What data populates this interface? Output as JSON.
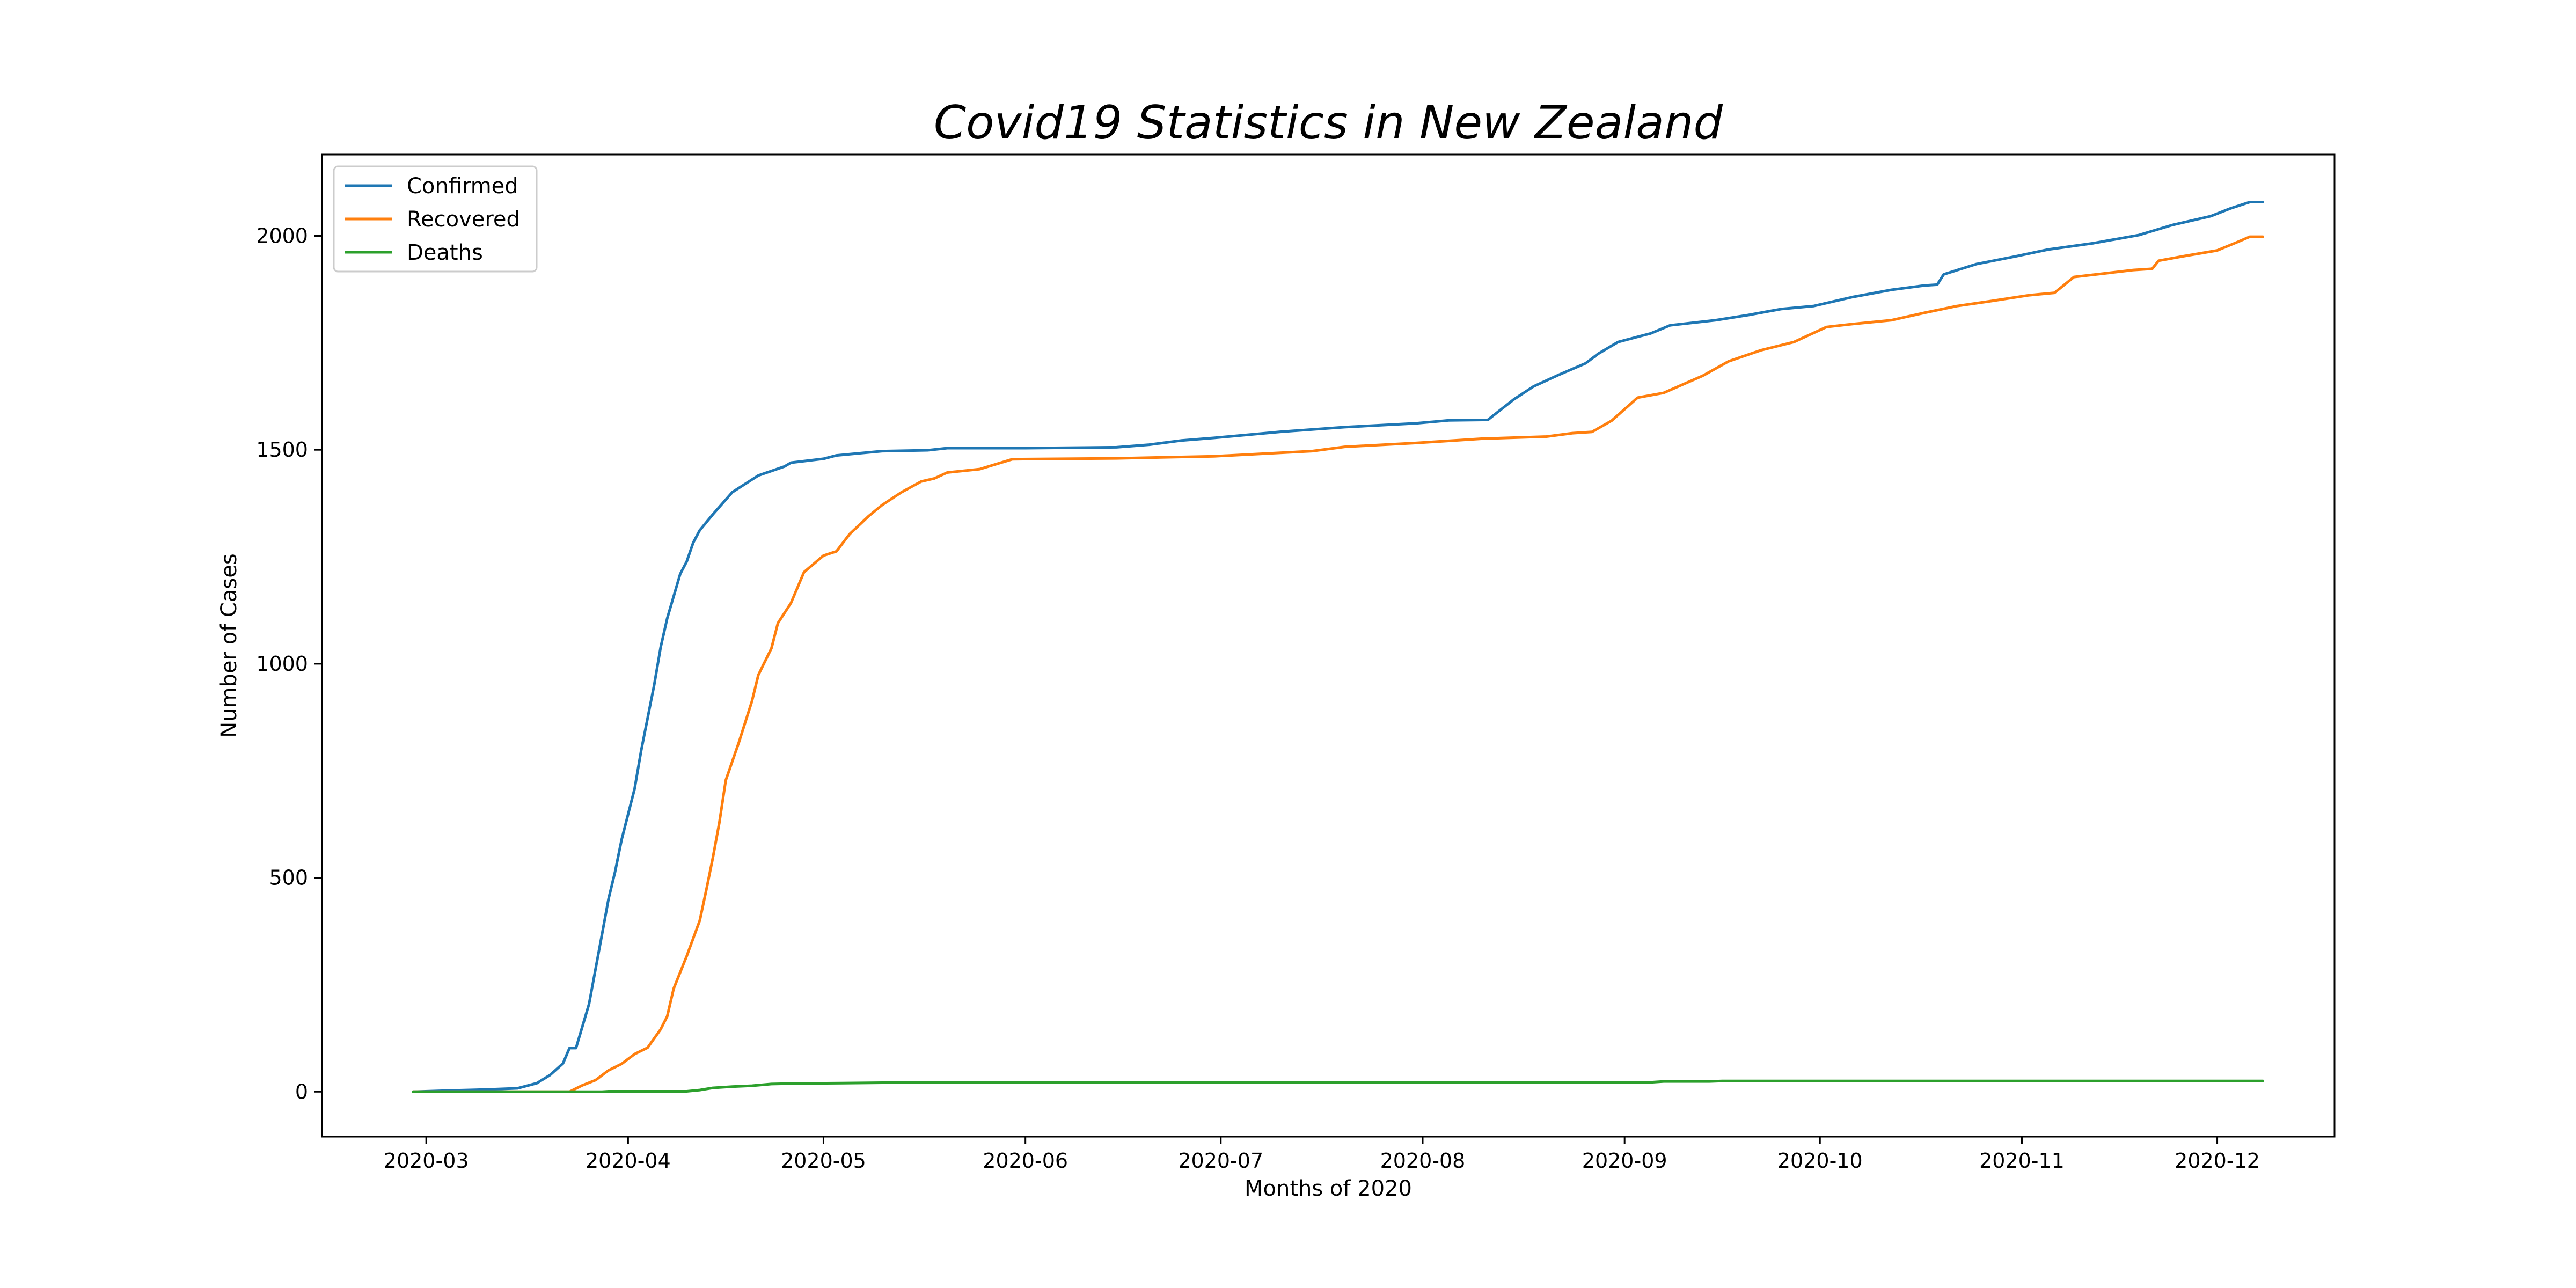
{
  "chart_data": {
    "type": "line",
    "title": "Covid19 Statistics in New Zealand",
    "xlabel": "Months of 2020",
    "ylabel": "Number of Cases",
    "xlim": [
      "2020-02-14",
      "2020-12-19"
    ],
    "ylim": [
      -105,
      2190
    ],
    "x_ticks": [
      "2020-03",
      "2020-04",
      "2020-05",
      "2020-06",
      "2020-07",
      "2020-08",
      "2020-09",
      "2020-10",
      "2020-11",
      "2020-12"
    ],
    "y_ticks": [
      0,
      500,
      1000,
      1500,
      2000
    ],
    "grid": false,
    "legend_position": "top-left",
    "series": [
      {
        "name": "Confirmed",
        "color": "#1f77b4",
        "points": [
          [
            "2020-02-28",
            0
          ],
          [
            "2020-03-05",
            3
          ],
          [
            "2020-03-10",
            5
          ],
          [
            "2020-03-15",
            8
          ],
          [
            "2020-03-18",
            20
          ],
          [
            "2020-03-20",
            39
          ],
          [
            "2020-03-22",
            66
          ],
          [
            "2020-03-23",
            102
          ],
          [
            "2020-03-24",
            102
          ],
          [
            "2020-03-26",
            205
          ],
          [
            "2020-03-28",
            368
          ],
          [
            "2020-03-29",
            451
          ],
          [
            "2020-03-30",
            514
          ],
          [
            "2020-03-31",
            589
          ],
          [
            "2020-04-02",
            708
          ],
          [
            "2020-04-03",
            797
          ],
          [
            "2020-04-05",
            950
          ],
          [
            "2020-04-06",
            1039
          ],
          [
            "2020-04-07",
            1106
          ],
          [
            "2020-04-09",
            1210
          ],
          [
            "2020-04-10",
            1239
          ],
          [
            "2020-04-11",
            1283
          ],
          [
            "2020-04-12",
            1312
          ],
          [
            "2020-04-14",
            1349
          ],
          [
            "2020-04-17",
            1401
          ],
          [
            "2020-04-21",
            1440
          ],
          [
            "2020-04-25",
            1461
          ],
          [
            "2020-04-26",
            1470
          ],
          [
            "2020-05-01",
            1479
          ],
          [
            "2020-05-03",
            1487
          ],
          [
            "2020-05-10",
            1497
          ],
          [
            "2020-05-17",
            1499
          ],
          [
            "2020-05-20",
            1504
          ],
          [
            "2020-06-01",
            1504
          ],
          [
            "2020-06-15",
            1506
          ],
          [
            "2020-06-20",
            1512
          ],
          [
            "2020-06-25",
            1522
          ],
          [
            "2020-06-30",
            1528
          ],
          [
            "2020-07-10",
            1542
          ],
          [
            "2020-07-20",
            1553
          ],
          [
            "2020-07-31",
            1562
          ],
          [
            "2020-08-05",
            1569
          ],
          [
            "2020-08-11",
            1570
          ],
          [
            "2020-08-13",
            1594
          ],
          [
            "2020-08-15",
            1618
          ],
          [
            "2020-08-18",
            1648
          ],
          [
            "2020-08-22",
            1676
          ],
          [
            "2020-08-26",
            1702
          ],
          [
            "2020-08-28",
            1725
          ],
          [
            "2020-08-31",
            1752
          ],
          [
            "2020-09-05",
            1772
          ],
          [
            "2020-09-08",
            1791
          ],
          [
            "2020-09-15",
            1803
          ],
          [
            "2020-09-20",
            1815
          ],
          [
            "2020-09-25",
            1829
          ],
          [
            "2020-09-30",
            1836
          ],
          [
            "2020-10-06",
            1857
          ],
          [
            "2020-10-12",
            1874
          ],
          [
            "2020-10-17",
            1884
          ],
          [
            "2020-10-19",
            1886
          ],
          [
            "2020-10-20",
            1910
          ],
          [
            "2020-10-25",
            1934
          ],
          [
            "2020-10-31",
            1952
          ],
          [
            "2020-11-05",
            1968
          ],
          [
            "2020-11-12",
            1983
          ],
          [
            "2020-11-19",
            2002
          ],
          [
            "2020-11-24",
            2025
          ],
          [
            "2020-11-30",
            2046
          ],
          [
            "2020-12-03",
            2064
          ],
          [
            "2020-12-06",
            2079
          ],
          [
            "2020-12-08",
            2079
          ]
        ]
      },
      {
        "name": "Recovered",
        "color": "#ff7f0e",
        "points": [
          [
            "2020-02-28",
            0
          ],
          [
            "2020-03-23",
            0
          ],
          [
            "2020-03-25",
            15
          ],
          [
            "2020-03-27",
            27
          ],
          [
            "2020-03-29",
            50
          ],
          [
            "2020-03-31",
            65
          ],
          [
            "2020-04-02",
            88
          ],
          [
            "2020-04-04",
            103
          ],
          [
            "2020-04-06",
            146
          ],
          [
            "2020-04-07",
            176
          ],
          [
            "2020-04-08",
            241
          ],
          [
            "2020-04-10",
            317
          ],
          [
            "2020-04-12",
            400
          ],
          [
            "2020-04-13",
            471
          ],
          [
            "2020-04-14",
            546
          ],
          [
            "2020-04-15",
            628
          ],
          [
            "2020-04-16",
            728
          ],
          [
            "2020-04-18",
            816
          ],
          [
            "2020-04-20",
            912
          ],
          [
            "2020-04-21",
            974
          ],
          [
            "2020-04-23",
            1036
          ],
          [
            "2020-04-24",
            1095
          ],
          [
            "2020-04-26",
            1142
          ],
          [
            "2020-04-28",
            1214
          ],
          [
            "2020-05-01",
            1253
          ],
          [
            "2020-05-03",
            1263
          ],
          [
            "2020-05-05",
            1303
          ],
          [
            "2020-05-08",
            1346
          ],
          [
            "2020-05-10",
            1371
          ],
          [
            "2020-05-13",
            1401
          ],
          [
            "2020-05-16",
            1426
          ],
          [
            "2020-05-18",
            1433
          ],
          [
            "2020-05-20",
            1447
          ],
          [
            "2020-05-25",
            1455
          ],
          [
            "2020-05-30",
            1478
          ],
          [
            "2020-06-15",
            1480
          ],
          [
            "2020-06-30",
            1485
          ],
          [
            "2020-07-15",
            1497
          ],
          [
            "2020-07-20",
            1507
          ],
          [
            "2020-07-31",
            1516
          ],
          [
            "2020-08-10",
            1526
          ],
          [
            "2020-08-20",
            1531
          ],
          [
            "2020-08-24",
            1539
          ],
          [
            "2020-08-27",
            1542
          ],
          [
            "2020-08-30",
            1568
          ],
          [
            "2020-09-03",
            1622
          ],
          [
            "2020-09-07",
            1633
          ],
          [
            "2020-09-13",
            1673
          ],
          [
            "2020-09-17",
            1707
          ],
          [
            "2020-09-22",
            1733
          ],
          [
            "2020-09-27",
            1752
          ],
          [
            "2020-10-02",
            1787
          ],
          [
            "2020-10-06",
            1794
          ],
          [
            "2020-10-12",
            1803
          ],
          [
            "2020-10-17",
            1820
          ],
          [
            "2020-10-22",
            1836
          ],
          [
            "2020-10-27",
            1847
          ],
          [
            "2020-11-02",
            1861
          ],
          [
            "2020-11-06",
            1867
          ],
          [
            "2020-11-09",
            1904
          ],
          [
            "2020-11-13",
            1911
          ],
          [
            "2020-11-18",
            1920
          ],
          [
            "2020-11-21",
            1923
          ],
          [
            "2020-11-22",
            1942
          ],
          [
            "2020-11-26",
            1953
          ],
          [
            "2020-12-01",
            1966
          ],
          [
            "2020-12-04",
            1985
          ],
          [
            "2020-12-06",
            1998
          ],
          [
            "2020-12-08",
            1998
          ]
        ]
      },
      {
        "name": "Deaths",
        "color": "#2ca02c",
        "points": [
          [
            "2020-02-28",
            0
          ],
          [
            "2020-03-28",
            0
          ],
          [
            "2020-03-29",
            1
          ],
          [
            "2020-04-10",
            1
          ],
          [
            "2020-04-12",
            4
          ],
          [
            "2020-04-14",
            9
          ],
          [
            "2020-04-17",
            12
          ],
          [
            "2020-04-20",
            14
          ],
          [
            "2020-04-23",
            18
          ],
          [
            "2020-04-26",
            19
          ],
          [
            "2020-05-04",
            20
          ],
          [
            "2020-05-10",
            21
          ],
          [
            "2020-05-25",
            21
          ],
          [
            "2020-05-27",
            22
          ],
          [
            "2020-09-05",
            22
          ],
          [
            "2020-09-07",
            24
          ],
          [
            "2020-09-14",
            24
          ],
          [
            "2020-09-16",
            25
          ],
          [
            "2020-12-08",
            25
          ]
        ]
      }
    ]
  }
}
